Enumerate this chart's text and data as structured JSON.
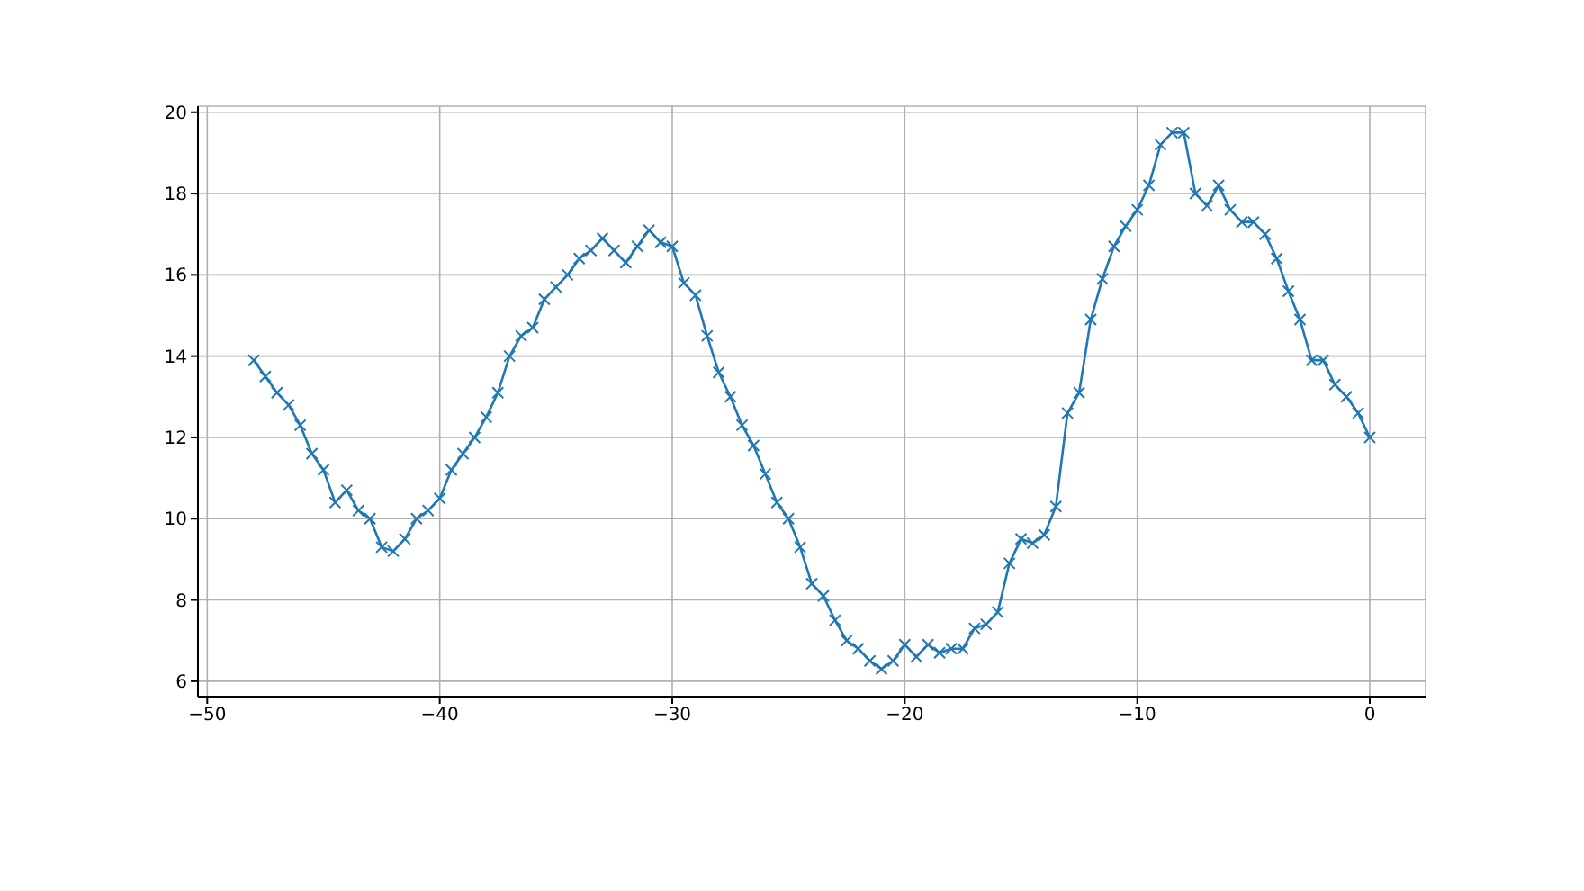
{
  "chart_data": {
    "type": "line",
    "x": [
      -48,
      -47.5,
      -47,
      -46.5,
      -46,
      -45.5,
      -45,
      -44.5,
      -44,
      -43.5,
      -43,
      -42.5,
      -42,
      -41.5,
      -41,
      -40.5,
      -40,
      -39.5,
      -39,
      -38.5,
      -38,
      -37.5,
      -37,
      -36.5,
      -36,
      -35.5,
      -35,
      -34.5,
      -34,
      -33.5,
      -33,
      -32.5,
      -32,
      -31.5,
      -31,
      -30.5,
      -30,
      -29.5,
      -29,
      -28.5,
      -28,
      -27.5,
      -27,
      -26.5,
      -26,
      -25.5,
      -25,
      -24.5,
      -24,
      -23.5,
      -23,
      -22.5,
      -22,
      -21.5,
      -21,
      -20.5,
      -20,
      -19.5,
      -19,
      -18.5,
      -18,
      -17.5,
      -17,
      -16.5,
      -16,
      -15.5,
      -15,
      -14.5,
      -14,
      -13.5,
      -13,
      -12.5,
      -12,
      -11.5,
      -11,
      -10.5,
      -10,
      -9.5,
      -9,
      -8.5,
      -8,
      -7.5,
      -7,
      -6.5,
      -6,
      -5.5,
      -5,
      -4.5,
      -4,
      -3.5,
      -3,
      -2.5,
      -2,
      -1.5,
      -1,
      -0.5,
      0
    ],
    "series": [
      {
        "color": "#1f77b4",
        "values": [
          13.9,
          13.5,
          13.1,
          12.8,
          12.3,
          11.6,
          11.2,
          10.4,
          10.7,
          10.2,
          10.0,
          9.3,
          9.2,
          9.5,
          10.0,
          10.2,
          10.5,
          11.2,
          11.6,
          12.0,
          12.5,
          13.1,
          14.0,
          14.5,
          14.7,
          15.4,
          15.7,
          16.0,
          16.4,
          16.6,
          16.9,
          16.6,
          16.3,
          16.7,
          17.1,
          16.8,
          16.7,
          15.8,
          15.5,
          14.5,
          13.6,
          13.0,
          12.3,
          11.8,
          11.1,
          10.4,
          10.0,
          9.3,
          8.4,
          8.1,
          7.5,
          7.0,
          6.8,
          6.5,
          6.3,
          6.5,
          6.9,
          6.6,
          6.9,
          6.7,
          6.8,
          6.8,
          7.3,
          7.4,
          7.7,
          8.9,
          9.5,
          9.4,
          9.6,
          10.3,
          12.6,
          13.1,
          14.9,
          15.9,
          16.7,
          17.2,
          17.6,
          18.2,
          19.2,
          19.5,
          19.5,
          18.0,
          17.7,
          18.2,
          17.6,
          17.3,
          17.3,
          17.0,
          16.4,
          15.6,
          14.9,
          13.9,
          13.9,
          13.3,
          13.0,
          12.6,
          12.0
        ]
      }
    ],
    "xlim": [
      -50.4,
      2.4
    ],
    "xticks": [
      -50,
      -40,
      -30,
      -20,
      -10,
      0
    ],
    "ylim": [
      5.62,
      20.15
    ],
    "yticks": [
      6,
      8,
      10,
      12,
      14,
      16,
      18,
      20
    ],
    "grid": true,
    "marker": "cross",
    "line_style": "solid"
  }
}
